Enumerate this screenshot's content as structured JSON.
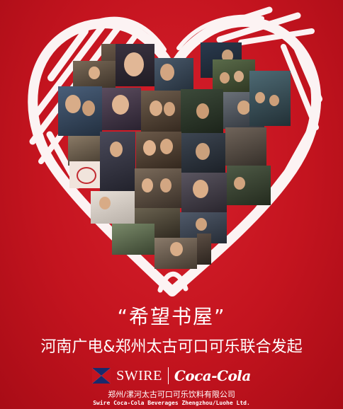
{
  "campaign": {
    "title": "“希望书屋”",
    "subtitle": "河南广电&郑州太古可口可乐联合发起"
  },
  "logos": {
    "swire": "SWIRE",
    "coke": "Coca-Cola",
    "company_cn": "郑州/漯河太古可口可乐饮料有限公司",
    "company_en": "Swire Coca-Cola Beverages Zhengzhou/Luohe Ltd."
  },
  "colors": {
    "background": "#c4141f",
    "text": "#ffffff",
    "heart_scribble": "#ffffff"
  },
  "icons": {
    "swire_flag": "swire-flag-icon"
  }
}
